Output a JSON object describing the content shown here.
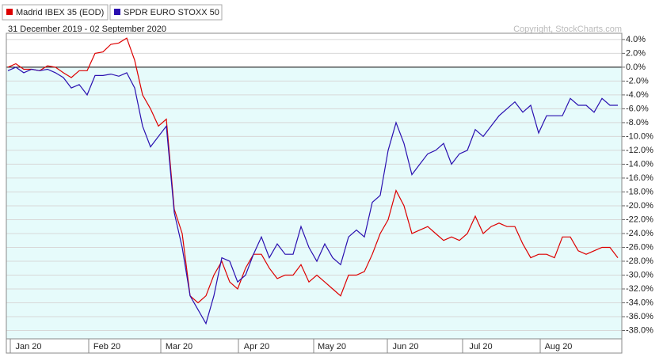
{
  "chart_data": {
    "type": "line",
    "subtitle": "31 December 2019 - 02 September 2020",
    "annotation": "Copyright, StockCharts.com",
    "series": [
      {
        "name": "Madrid IBEX 35 (EOD)",
        "color": "#dd0000",
        "values": [
          0,
          0.5,
          -0.3,
          -0.3,
          -0.5,
          0.2,
          0,
          -0.8,
          -1.5,
          -0.5,
          -0.5,
          2.0,
          2.2,
          3.3,
          3.5,
          4.2,
          1.0,
          -4.0,
          -6.0,
          -8.5,
          -7.5,
          -20.5,
          -24,
          -33,
          -34,
          -33,
          -30,
          -28,
          -31,
          -32,
          -29,
          -27,
          -27,
          -29,
          -30.5,
          -30,
          -30,
          -28.5,
          -31,
          -30,
          -31,
          -32,
          -33,
          -30,
          -30,
          -29.5,
          -27,
          -24,
          -22,
          -17.8,
          -20,
          -24,
          -23.5,
          -23,
          -24,
          -25,
          -24.5,
          -25,
          -24,
          -21.5,
          -24,
          -23,
          -22.5,
          -23,
          -23,
          -25.5,
          -27.5,
          -27,
          -27,
          -27.5,
          -24.5,
          -24.5,
          -26.5,
          -27,
          -26.5,
          -26,
          -26,
          -27.5
        ]
      },
      {
        "name": "SPDR EURO STOXX 50",
        "color": "#2a10b0",
        "values": [
          -0.5,
          0,
          -0.8,
          -0.3,
          -0.5,
          -0.3,
          -0.8,
          -1.5,
          -3.0,
          -2.5,
          -4.0,
          -1.2,
          -1.2,
          -1.0,
          -1.3,
          -0.8,
          -3,
          -8.5,
          -11.5,
          -10,
          -8.5,
          -21,
          -26,
          -33,
          -35,
          -37,
          -33,
          -27.5,
          -28,
          -31,
          -30,
          -27,
          -24.5,
          -27.5,
          -25.5,
          -27,
          -27,
          -23,
          -26,
          -28,
          -25.5,
          -27.5,
          -28.5,
          -24.5,
          -23.5,
          -24.5,
          -19.5,
          -18.5,
          -12,
          -8,
          -11,
          -15.5,
          -14,
          -12.5,
          -12,
          -11,
          -14,
          -12.5,
          -12,
          -9,
          -10,
          -8.5,
          -7,
          -6,
          -5,
          -6.5,
          -5.5,
          -9.5,
          -7,
          -7,
          -7,
          -4.5,
          -5.5,
          -5.5,
          -6.5,
          -4.5,
          -5.5,
          -5.5
        ]
      }
    ],
    "xlim": [
      -0.2,
      77.5
    ],
    "xticks": [
      {
        "value": 0.3,
        "label": "Jan 20"
      },
      {
        "value": 10.2,
        "label": "Feb 20"
      },
      {
        "value": 19.3,
        "label": "Mar 20"
      },
      {
        "value": 29.1,
        "label": "Apr 20"
      },
      {
        "value": 38.6,
        "label": "May 20"
      },
      {
        "value": 47.9,
        "label": "Jun 20"
      },
      {
        "value": 57.4,
        "label": "Jul 20"
      },
      {
        "value": 67.2,
        "label": "Aug 20"
      }
    ],
    "ylim": [
      -39.2,
      4.9
    ],
    "yticks": [
      {
        "value": 4,
        "label": "4.0%"
      },
      {
        "value": 2,
        "label": "2.0%"
      },
      {
        "value": 0,
        "label": "0.0%"
      },
      {
        "value": -2,
        "label": "-2.0%"
      },
      {
        "value": -4,
        "label": "-4.0%"
      },
      {
        "value": -6,
        "label": "-6.0%"
      },
      {
        "value": -8,
        "label": "-8.0%"
      },
      {
        "value": -10,
        "label": "-10.0%"
      },
      {
        "value": -12,
        "label": "-12.0%"
      },
      {
        "value": -14,
        "label": "-14.0%"
      },
      {
        "value": -16,
        "label": "-16.0%"
      },
      {
        "value": -18,
        "label": "-18.0%"
      },
      {
        "value": -20,
        "label": "-20.0%"
      },
      {
        "value": -22,
        "label": "-22.0%"
      },
      {
        "value": -24,
        "label": "-24.0%"
      },
      {
        "value": -26,
        "label": "-26.0%"
      },
      {
        "value": -28,
        "label": "-28.0%"
      },
      {
        "value": -30,
        "label": "-30.0%"
      },
      {
        "value": -32,
        "label": "-32.0%"
      },
      {
        "value": -34,
        "label": "-34.0%"
      },
      {
        "value": -36,
        "label": "-36.0%"
      },
      {
        "value": -38,
        "label": "-38.0%"
      }
    ],
    "grid": true
  }
}
